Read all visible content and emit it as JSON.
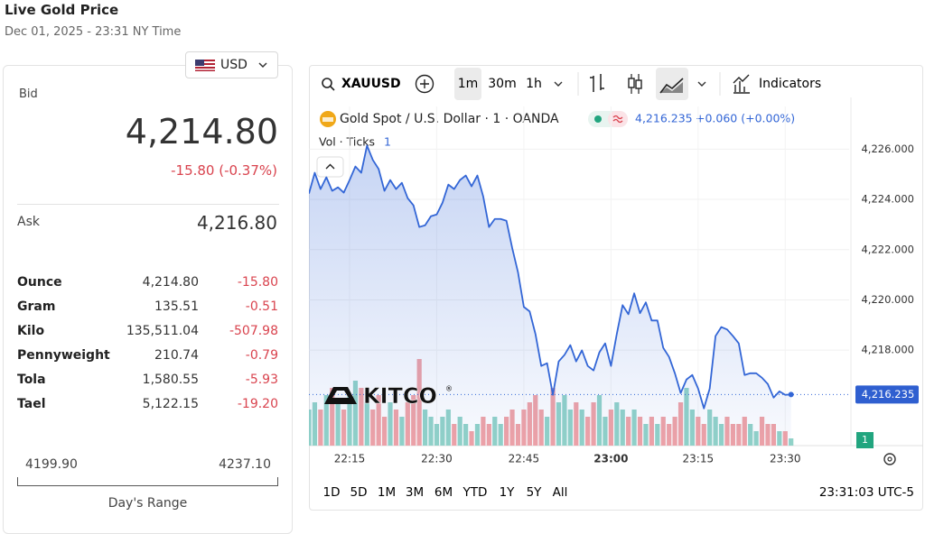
{
  "header": {
    "title": "Live Gold Price",
    "subtitle": "Dec 01, 2025 - 23:31 NY Time"
  },
  "currency": "USD",
  "quote": {
    "bid_label": "Bid",
    "bid": "4,214.80",
    "change": "-15.80 (-0.37%)",
    "ask_label": "Ask",
    "ask": "4,216.80"
  },
  "units": [
    [
      "Ounce",
      "4,214.80",
      "-15.80"
    ],
    [
      "Gram",
      "135.51",
      "-0.51"
    ],
    [
      "Kilo",
      "135,511.04",
      "-507.98"
    ],
    [
      "Pennyweight",
      "210.74",
      "-0.79"
    ],
    [
      "Tola",
      "1,580.55",
      "-5.93"
    ],
    [
      "Tael",
      "5,122.15",
      "-19.20"
    ]
  ],
  "day_range": {
    "low": "4199.90",
    "high": "4237.10",
    "label": "Day's Range"
  },
  "toolbar": {
    "symbol": "XAUUSD",
    "intervals": [
      "1m",
      "30m",
      "1h"
    ],
    "indicators": "Indicators"
  },
  "legend": {
    "price": "4,216.235",
    "change": "+0.060 (+0.00%)"
  },
  "logo": {
    "name": "KITCO",
    "mark": "®"
  },
  "periods": [
    "1D",
    "5D",
    "1M",
    "3M",
    "6M",
    "YTD",
    "1Y",
    "5Y",
    "All"
  ],
  "clock": "23:31:03 UTC-5",
  "chart_data": {
    "type": "line",
    "x": [
      1328,
      1329,
      1330,
      1331,
      1332,
      1333,
      1334,
      1335,
      1336,
      1337,
      1338,
      1339,
      1340,
      1341,
      1342,
      1343,
      1344,
      1345,
      1346,
      1347,
      1348,
      1349,
      1350,
      1351,
      1352,
      1353,
      1354,
      1355,
      1356,
      1357,
      1358,
      1359,
      1360,
      1361,
      1362,
      1363,
      1364,
      1365,
      1366,
      1367,
      1368,
      1369,
      1370,
      1371,
      1372,
      1373,
      1374,
      1375,
      1376,
      1377,
      1378,
      1379,
      1380,
      1381,
      1382,
      1383,
      1384,
      1385,
      1386,
      1387,
      1388,
      1389,
      1390,
      1391,
      1392,
      1393,
      1394,
      1395,
      1396,
      1397,
      1398,
      1399,
      1400,
      1401,
      1402,
      1403,
      1404,
      1405,
      1406,
      1407,
      1408,
      1409,
      1410,
      1411
    ],
    "xlim": [
      1328,
      1421
    ],
    "xticks": [
      {
        "value": 1335,
        "label": "22:15"
      },
      {
        "value": 1350,
        "label": "22:30"
      },
      {
        "value": 1365,
        "label": "22:45"
      },
      {
        "value": 1380,
        "label": "23:00"
      },
      {
        "value": 1395,
        "label": "23:15"
      },
      {
        "value": 1410,
        "label": "23:30"
      }
    ],
    "ylim": [
      4214.2,
      4227.7
    ],
    "yticks": [
      {
        "value": 4218,
        "label": "4,218.000"
      },
      {
        "value": 4220,
        "label": "4,220.000"
      },
      {
        "value": 4222,
        "label": "4,222.000"
      },
      {
        "value": 4224,
        "label": "4,224.000"
      },
      {
        "value": 4226,
        "label": "4,226.000"
      }
    ],
    "y2lim": [
      0,
      47
    ],
    "grid": true,
    "series": [
      {
        "name": "Gold Spot / U.S. Dollar · 1 · OANDA",
        "color": "#3366d6",
        "values": [
          4224.23,
          4225.06,
          4224.41,
          4224.88,
          4224.34,
          4224.48,
          4224.27,
          4224.77,
          4225.31,
          4225.06,
          4226.14,
          4225.57,
          4225.21,
          4224.34,
          4224.77,
          4224.41,
          4224.66,
          4224.05,
          4223.76,
          4222.9,
          4222.97,
          4223.33,
          4223.4,
          4223.87,
          4224.59,
          4224.41,
          4224.77,
          4224.95,
          4224.52,
          4224.95,
          4224.12,
          4222.9,
          4223.22,
          4223.22,
          4223.15,
          4222.06,
          4221.09,
          4219.72,
          4219.54,
          4218.64,
          4217.37,
          4217.48,
          4216.22,
          4217.55,
          4217.81,
          4218.2,
          4217.55,
          4217.99,
          4217.37,
          4217.19,
          4217.91,
          4218.27,
          4217.37,
          4218.64,
          4219.79,
          4219.43,
          4220.26,
          4219.47,
          4219.9,
          4219.18,
          4219.18,
          4218.09,
          4217.73,
          4217.08,
          4216.29,
          4216.83,
          4217.01,
          4216.47,
          4215.68,
          4216.47,
          4218.56,
          4218.92,
          4218.82,
          4218.56,
          4218.27,
          4217.01,
          4217.08,
          4217.08,
          4216.9,
          4216.65,
          4216.11,
          4216.36,
          4216.22,
          4216.235
        ]
      },
      {
        "name": "Vol · Ticks",
        "type": "bar",
        "axis": "y2",
        "up_color": "#92d3c8",
        "down_color": "#f1a3a6",
        "values": [
          5,
          6,
          5,
          7,
          8,
          6,
          5,
          7,
          9,
          8,
          6,
          5,
          7,
          4,
          6,
          5,
          4,
          6,
          7,
          12,
          5,
          4,
          3,
          4,
          5,
          3,
          4,
          3,
          2,
          3,
          4,
          3,
          4,
          3,
          4,
          5,
          3,
          5,
          6,
          7,
          5,
          4,
          8,
          6,
          7,
          5,
          6,
          5,
          4,
          6,
          7,
          4,
          5,
          6,
          5,
          4,
          5,
          4,
          3,
          4,
          3,
          4,
          3,
          4,
          6,
          8,
          5,
          4,
          3,
          5,
          4,
          3,
          4,
          3,
          3,
          4,
          3,
          2,
          4,
          3,
          3,
          2,
          2,
          1
        ]
      }
    ]
  }
}
